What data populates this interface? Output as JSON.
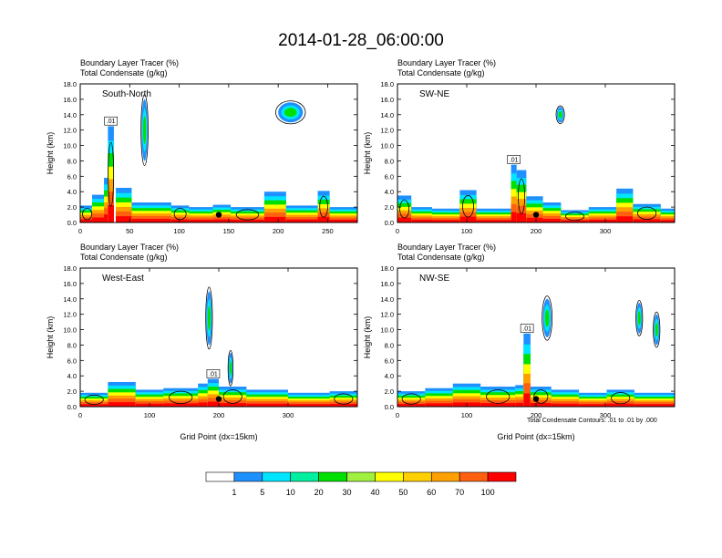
{
  "title": "2014-01-28_06:00:00",
  "colors": [
    "#ffffff",
    "#1e90ff",
    "#00e5ff",
    "#00f0a0",
    "#00e000",
    "#a0f040",
    "#ffff00",
    "#ffd000",
    "#ffa000",
    "#ff6010",
    "#ff0000"
  ],
  "contour_note": "Total Condensate Contours: .01 to .01 by .000",
  "chart_data": [
    {
      "type": "heatmap",
      "panel_label": "South-North",
      "subtitle_1": "Boundary Layer Tracer   (%)",
      "subtitle_2": "Total Condensate   (g/kg)",
      "ylabel": "Height (km)",
      "xlabel": "",
      "ylim": [
        0,
        18
      ],
      "xlim": [
        0,
        280
      ],
      "x_ticks": [
        "0",
        "50",
        "100",
        "150",
        "200",
        "250"
      ],
      "y_ticks": [
        "0.0",
        "2.0",
        "4.0",
        "6.0",
        "8.0",
        "10.0",
        "12.0",
        "14.0",
        "16.0",
        "18.0"
      ],
      "contour_label": ".01",
      "marker_x": 140,
      "features": [
        {
          "x": 0,
          "w": 14,
          "top": 2.2
        },
        {
          "x": 12,
          "w": 14,
          "top": 3.6
        },
        {
          "x": 24,
          "w": 4,
          "top": 5.8
        },
        {
          "x": 28,
          "w": 6,
          "top": 12.5
        },
        {
          "x": 36,
          "w": 16,
          "top": 4.5
        },
        {
          "x": 52,
          "w": 40,
          "top": 2.6
        },
        {
          "x": 92,
          "w": 18,
          "top": 2.2
        },
        {
          "x": 110,
          "w": 24,
          "top": 2.0
        },
        {
          "x": 134,
          "w": 18,
          "top": 2.3
        },
        {
          "x": 152,
          "w": 34,
          "top": 2.0
        },
        {
          "x": 186,
          "w": 22,
          "top": 4.0
        },
        {
          "x": 208,
          "w": 32,
          "top": 2.2
        },
        {
          "x": 240,
          "w": 12,
          "top": 4.1
        },
        {
          "x": 252,
          "w": 28,
          "top": 2.0
        }
      ],
      "anvils": [
        {
          "x": 200,
          "y": 13,
          "w": 25,
          "h": 2.6
        },
        {
          "x": 62,
          "y": 8,
          "w": 6,
          "h": 8
        }
      ]
    },
    {
      "type": "heatmap",
      "panel_label": "SW-NE",
      "subtitle_1": "Boundary Layer Tracer   (%)",
      "subtitle_2": "Total Condensate   (g/kg)",
      "ylabel": "Height (km)",
      "xlabel": "",
      "ylim": [
        0,
        18
      ],
      "xlim": [
        0,
        400
      ],
      "x_ticks": [
        "0",
        "100",
        "200",
        "300"
      ],
      "y_ticks": [
        "0.0",
        "2.0",
        "4.0",
        "6.0",
        "8.0",
        "10.0",
        "12.0",
        "14.0",
        "16.0",
        "18.0"
      ],
      "contour_label": ".01",
      "marker_x": 200,
      "features": [
        {
          "x": 0,
          "w": 20,
          "top": 3.5
        },
        {
          "x": 20,
          "w": 30,
          "top": 2.0
        },
        {
          "x": 50,
          "w": 40,
          "top": 1.8
        },
        {
          "x": 90,
          "w": 24,
          "top": 4.2
        },
        {
          "x": 114,
          "w": 50,
          "top": 1.8
        },
        {
          "x": 164,
          "w": 8,
          "top": 7.5
        },
        {
          "x": 172,
          "w": 14,
          "top": 6.8
        },
        {
          "x": 186,
          "w": 24,
          "top": 3.4
        },
        {
          "x": 210,
          "w": 26,
          "top": 2.6
        },
        {
          "x": 236,
          "w": 40,
          "top": 1.6
        },
        {
          "x": 276,
          "w": 40,
          "top": 2.0
        },
        {
          "x": 316,
          "w": 24,
          "top": 4.4
        },
        {
          "x": 340,
          "w": 40,
          "top": 2.4
        },
        {
          "x": 380,
          "w": 20,
          "top": 1.8
        }
      ],
      "anvils": [
        {
          "x": 230,
          "y": 13,
          "w": 10,
          "h": 2.0
        }
      ]
    },
    {
      "type": "heatmap",
      "panel_label": "West-East",
      "subtitle_1": "Boundary Layer Tracer   (%)",
      "subtitle_2": "Total Condensate   (g/kg)",
      "ylabel": "Height (km)",
      "xlabel": "Grid Point (dx=15km)",
      "ylim": [
        0,
        18
      ],
      "xlim": [
        0,
        400
      ],
      "x_ticks": [
        "0",
        "100",
        "200",
        "300"
      ],
      "y_ticks": [
        "0.0",
        "2.0",
        "4.0",
        "6.0",
        "8.0",
        "10.0",
        "12.0",
        "14.0",
        "16.0",
        "18.0"
      ],
      "contour_label": ".01",
      "marker_x": 200,
      "features": [
        {
          "x": 0,
          "w": 40,
          "top": 1.8
        },
        {
          "x": 40,
          "w": 40,
          "top": 3.2
        },
        {
          "x": 80,
          "w": 40,
          "top": 2.2
        },
        {
          "x": 120,
          "w": 50,
          "top": 2.4
        },
        {
          "x": 170,
          "w": 14,
          "top": 3.0
        },
        {
          "x": 184,
          "w": 16,
          "top": 3.6
        },
        {
          "x": 200,
          "w": 40,
          "top": 2.6
        },
        {
          "x": 240,
          "w": 60,
          "top": 2.2
        },
        {
          "x": 300,
          "w": 60,
          "top": 1.8
        },
        {
          "x": 360,
          "w": 40,
          "top": 2.0
        }
      ],
      "anvils": [
        {
          "x": 182,
          "y": 8,
          "w": 8,
          "h": 7
        },
        {
          "x": 214,
          "y": 3,
          "w": 6,
          "h": 4
        }
      ]
    },
    {
      "type": "heatmap",
      "panel_label": "NW-SE",
      "subtitle_1": "Boundary Layer Tracer   (%)",
      "subtitle_2": "Total Condensate   (g/kg)",
      "ylabel": "Height (km)",
      "xlabel": "Grid Point (dx=15km)",
      "ylim": [
        0,
        18
      ],
      "xlim": [
        0,
        400
      ],
      "x_ticks": [
        "0",
        "100",
        "200",
        "300"
      ],
      "y_ticks": [
        "0.0",
        "2.0",
        "4.0",
        "6.0",
        "8.0",
        "10.0",
        "12.0",
        "14.0",
        "16.0",
        "18.0"
      ],
      "contour_label": ".01",
      "marker_x": 200,
      "features": [
        {
          "x": 0,
          "w": 40,
          "top": 2.0
        },
        {
          "x": 40,
          "w": 40,
          "top": 2.4
        },
        {
          "x": 80,
          "w": 40,
          "top": 3.0
        },
        {
          "x": 120,
          "w": 50,
          "top": 2.6
        },
        {
          "x": 170,
          "w": 12,
          "top": 2.8
        },
        {
          "x": 182,
          "w": 10,
          "top": 9.5
        },
        {
          "x": 192,
          "w": 30,
          "top": 2.6
        },
        {
          "x": 222,
          "w": 40,
          "top": 2.2
        },
        {
          "x": 262,
          "w": 40,
          "top": 1.8
        },
        {
          "x": 302,
          "w": 40,
          "top": 2.2
        },
        {
          "x": 342,
          "w": 58,
          "top": 1.8
        }
      ],
      "anvils": [
        {
          "x": 210,
          "y": 9,
          "w": 12,
          "h": 5
        },
        {
          "x": 345,
          "y": 9.5,
          "w": 8,
          "h": 4
        },
        {
          "x": 370,
          "y": 8,
          "w": 8,
          "h": 4
        }
      ]
    }
  ],
  "colorbar": {
    "labels": [
      "1",
      "5",
      "10",
      "20",
      "30",
      "40",
      "50",
      "60",
      "70",
      "100"
    ]
  }
}
